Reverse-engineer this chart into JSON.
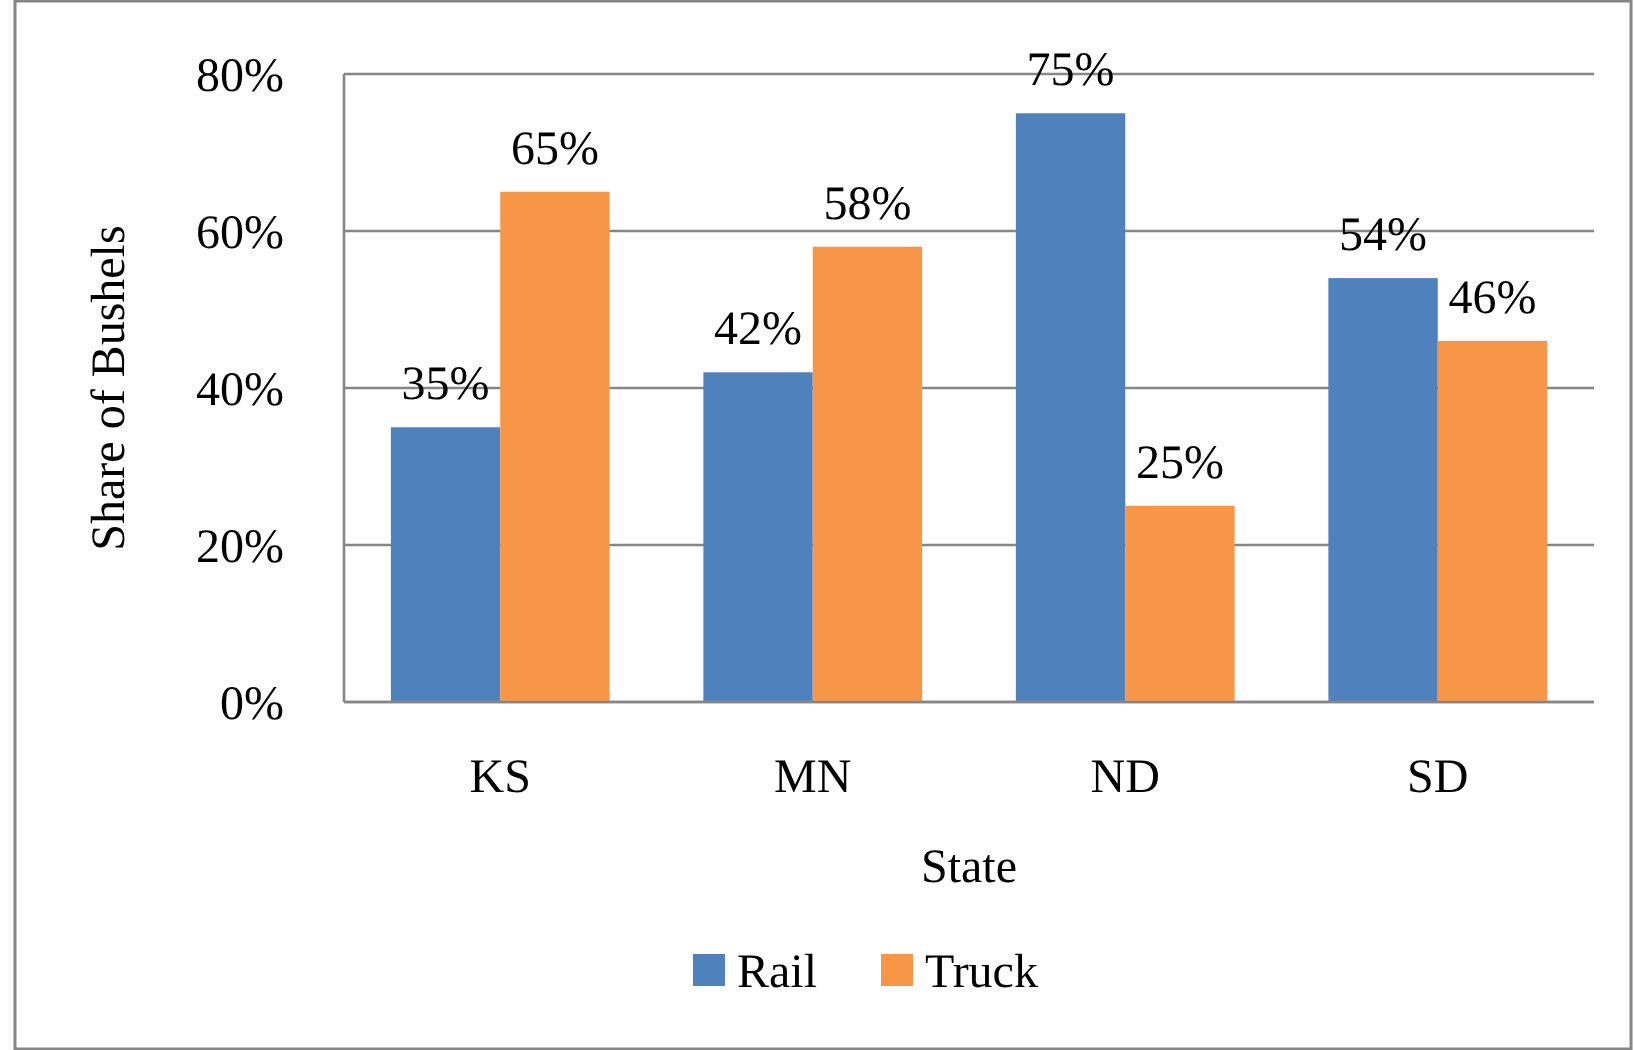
{
  "chart_data": {
    "type": "bar",
    "xlabel": "State",
    "ylabel": "Share of Bushels",
    "categories": [
      "KS",
      "MN",
      "ND",
      "SD"
    ],
    "series": [
      {
        "name": "Rail",
        "color": "#4f81bd",
        "values": [
          35,
          42,
          75,
          54
        ],
        "value_labels": [
          "35%",
          "42%",
          "75%",
          "54%"
        ]
      },
      {
        "name": "Truck",
        "color": "#f79646",
        "values": [
          65,
          58,
          25,
          46
        ],
        "value_labels": [
          "65%",
          "58%",
          "25%",
          "46%"
        ]
      }
    ],
    "ylim": [
      0,
      80
    ],
    "yticks": [
      {
        "value": 0,
        "label": "0%"
      },
      {
        "value": 20,
        "label": "20%"
      },
      {
        "value": 40,
        "label": "40%"
      },
      {
        "value": 60,
        "label": "60%"
      },
      {
        "value": 80,
        "label": "80%"
      }
    ],
    "grid": "y",
    "legend": "bottom"
  }
}
